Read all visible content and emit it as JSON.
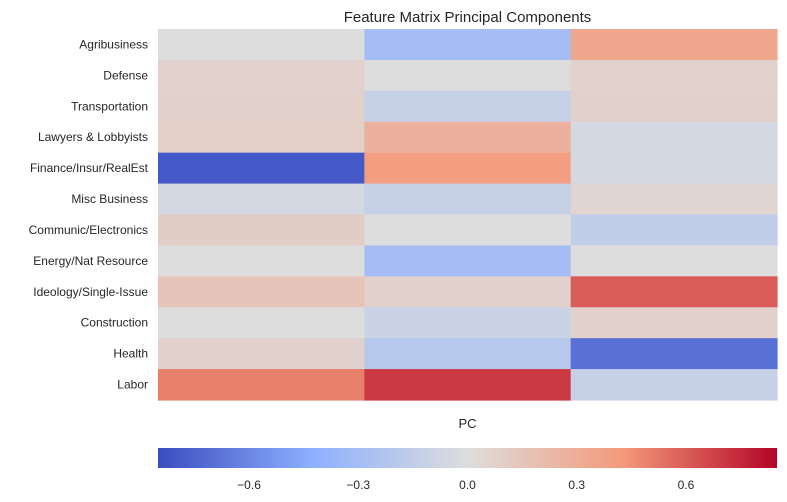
{
  "chart_data": {
    "type": "heatmap",
    "title": "Feature Matrix Principal Components",
    "xlabel": "PC",
    "ylabel": "",
    "rows": [
      "Agribusiness",
      "Defense",
      "Transportation",
      "Lawyers & Lobbyists",
      "Finance/Insur/RealEst",
      "Misc Business",
      "Communic/Electronics",
      "Energy/Nat Resource",
      "Ideology/Single-Issue",
      "Construction",
      "Health",
      "Labor"
    ],
    "columns": [
      "",
      "",
      ""
    ],
    "values": [
      [
        0.0,
        -0.3,
        0.35
      ],
      [
        0.07,
        0.0,
        0.07
      ],
      [
        0.08,
        -0.12,
        0.08
      ],
      [
        0.09,
        0.28,
        -0.05
      ],
      [
        -0.8,
        0.4,
        -0.05
      ],
      [
        -0.05,
        -0.12,
        0.05
      ],
      [
        0.1,
        0.0,
        -0.15
      ],
      [
        0.0,
        -0.3,
        0.0
      ],
      [
        0.15,
        0.08,
        0.6
      ],
      [
        0.0,
        -0.1,
        0.08
      ],
      [
        0.08,
        -0.2,
        -0.7
      ],
      [
        0.5,
        0.7,
        -0.12
      ]
    ],
    "colorbar": {
      "cmap": "coolwarm",
      "vmin": -0.85,
      "vmax": 0.85,
      "ticks": [
        -0.6,
        -0.3,
        0.0,
        0.3,
        0.6
      ],
      "tick_labels": [
        "−0.6",
        "−0.3",
        "0.0",
        "0.3",
        "0.6"
      ],
      "orientation": "horizontal"
    }
  }
}
